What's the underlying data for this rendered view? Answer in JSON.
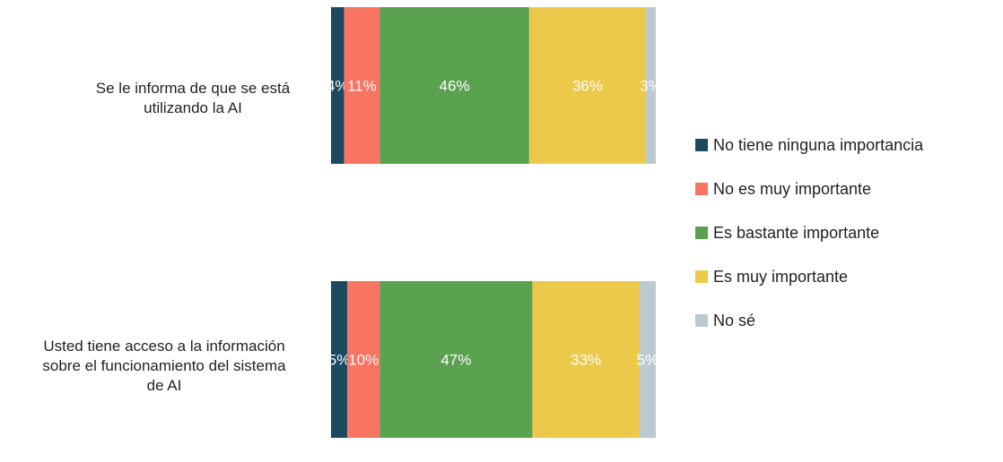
{
  "chart_data": {
    "type": "bar",
    "orientation": "horizontal",
    "stacked": true,
    "categories": [
      [
        "Se le informa de que se está",
        "utilizando la AI"
      ],
      [
        "Usted tiene acceso a la información",
        "sobre el funcionamiento del sistema",
        "de AI"
      ]
    ],
    "series": [
      {
        "name": "No tiene ninguna importancia",
        "color": "#1b4a5e",
        "values": [
          4,
          5
        ],
        "labels": [
          "4%",
          "5%"
        ]
      },
      {
        "name": "No es muy importante",
        "color": "#f97461",
        "values": [
          11,
          10
        ],
        "labels": [
          "11%",
          "10%"
        ]
      },
      {
        "name": "Es bastante importante",
        "color": "#5aa150",
        "values": [
          46,
          47
        ],
        "labels": [
          "46%",
          "47%"
        ]
      },
      {
        "name": "Es muy importante",
        "color": "#ecc94b",
        "values": [
          36,
          33
        ],
        "labels": [
          "36%",
          "33%"
        ]
      },
      {
        "name": "No sé",
        "color": "#bdc9d1",
        "values": [
          3,
          5
        ],
        "labels": [
          "3%",
          "5%"
        ]
      }
    ],
    "xlim": [
      0,
      100
    ],
    "legend_position": "right",
    "grid": false
  }
}
